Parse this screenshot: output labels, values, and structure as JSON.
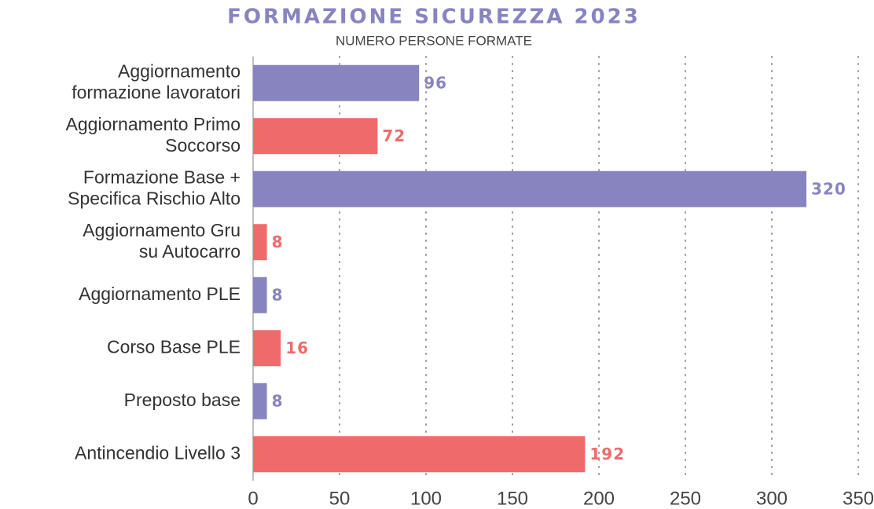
{
  "chart_data": {
    "type": "bar",
    "orientation": "horizontal",
    "title": "FORMAZIONE SICUREZZA 2023",
    "subtitle": "NUMERO PERSONE FORMATE",
    "categories": [
      [
        "Aggiornamento",
        "formazione lavoratori"
      ],
      [
        "Aggiornamento Primo",
        "Soccorso"
      ],
      [
        "Formazione Base +",
        "Specifica Rischio Alto"
      ],
      [
        "Aggiornamento Gru",
        "su Autocarro"
      ],
      [
        "Aggiornamento PLE"
      ],
      [
        "Corso Base PLE"
      ],
      [
        "Preposto base"
      ],
      [
        "Antincendio Livello 3"
      ]
    ],
    "values": [
      96,
      72,
      320,
      8,
      8,
      16,
      8,
      192
    ],
    "colors": [
      "#8884c0",
      "#ef6b6b",
      "#8884c0",
      "#ef6b6b",
      "#8884c0",
      "#ef6b6b",
      "#8884c0",
      "#ef6b6b"
    ],
    "xlim": [
      0,
      350
    ],
    "xticks": [
      0,
      50,
      100,
      150,
      200,
      250,
      300,
      350
    ],
    "grid": true
  }
}
